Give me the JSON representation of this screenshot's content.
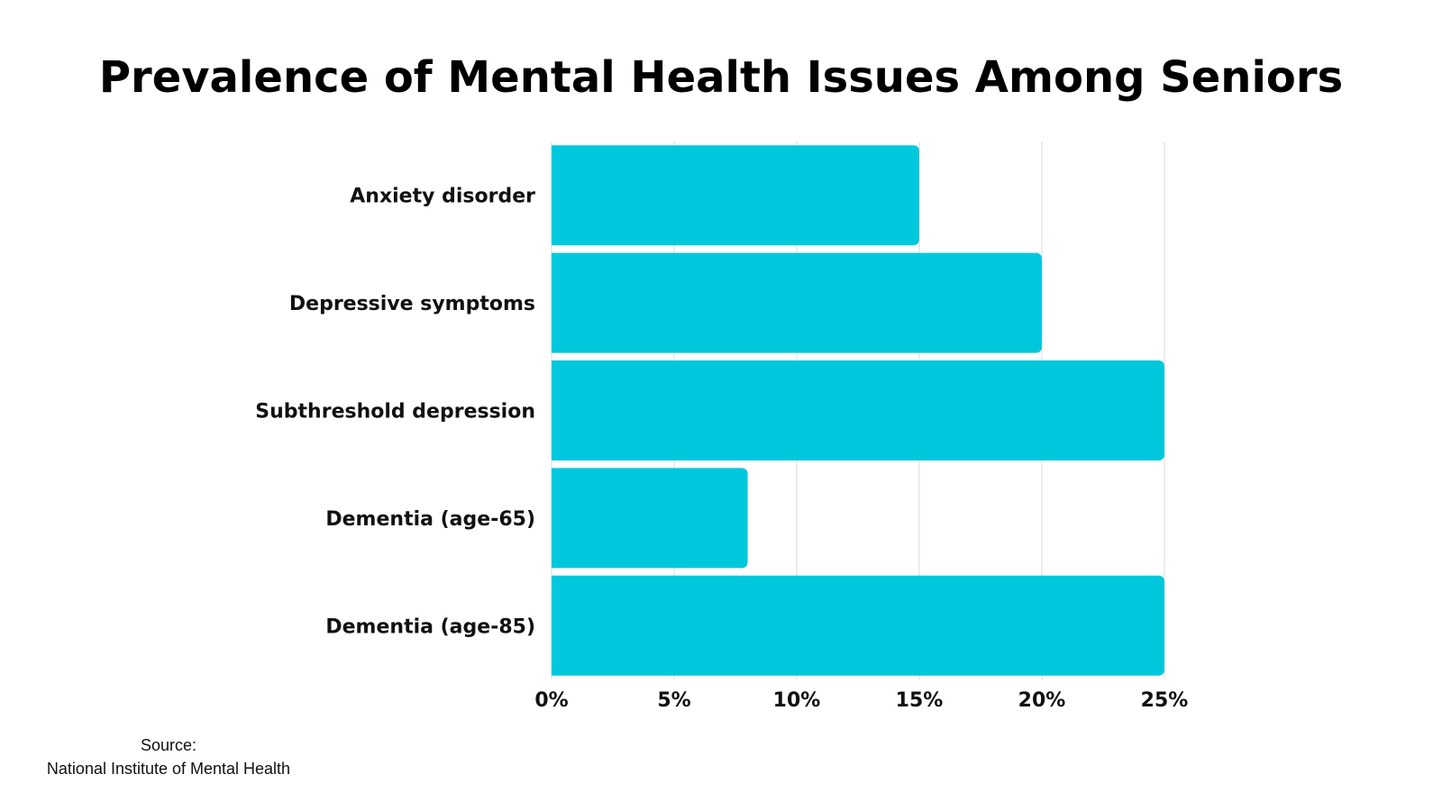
{
  "chart_data": {
    "type": "bar",
    "orientation": "horizontal",
    "title": "Prevalence of Mental Health Issues Among Seniors",
    "categories": [
      "Anxiety disorder",
      "Depressive symptoms",
      "Subthreshold depression",
      "Dementia (age-65)",
      "Dementia (age-85)"
    ],
    "values": [
      15,
      20,
      25,
      8,
      25
    ],
    "unit": "%",
    "xlim": [
      0,
      25
    ],
    "x_ticks": [
      0,
      5,
      10,
      15,
      20,
      25
    ],
    "x_tick_labels": [
      "0%",
      "5%",
      "10%",
      "15%",
      "20%",
      "25%"
    ],
    "grid": "vertical",
    "legend": "none",
    "bar_color": "#00C8DC",
    "grid_color": "#D9D9D9"
  },
  "source": {
    "label": "Source:",
    "name": "National Institute of Mental Health"
  }
}
